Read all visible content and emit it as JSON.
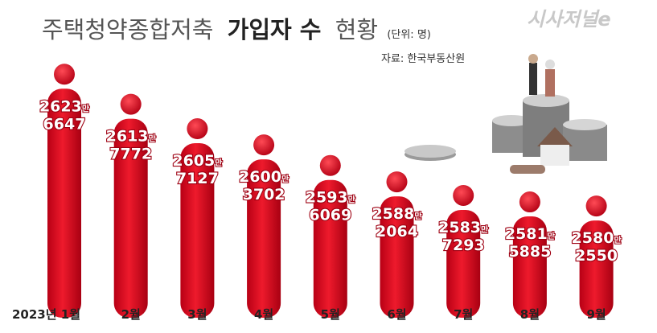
{
  "chart_data": {
    "type": "bar",
    "title": {
      "normal": "주택청약종합저축",
      "bold": "가입자 수",
      "end": "현황"
    },
    "unit": "(단위: 명)",
    "source": "자료: 한국부동산원",
    "logo": "시사저널e",
    "categories": [
      "2023년 1월",
      "2월",
      "3월",
      "4월",
      "5월",
      "6월",
      "7월",
      "8월",
      "9월"
    ],
    "values": [
      26236647,
      26137772,
      26057127,
      26003702,
      25936069,
      25882064,
      25837293,
      25815885,
      25802550
    ],
    "value_labels": [
      "2623만 6647",
      "2613만 7772",
      "2605만 7127",
      "2600만 3702",
      "2593만 6069",
      "2588만 2064",
      "2583만 7293",
      "2581만 5885",
      "2580만 2550"
    ],
    "color": "#e3001b",
    "ylim": [
      25400000,
      26240000
    ]
  }
}
